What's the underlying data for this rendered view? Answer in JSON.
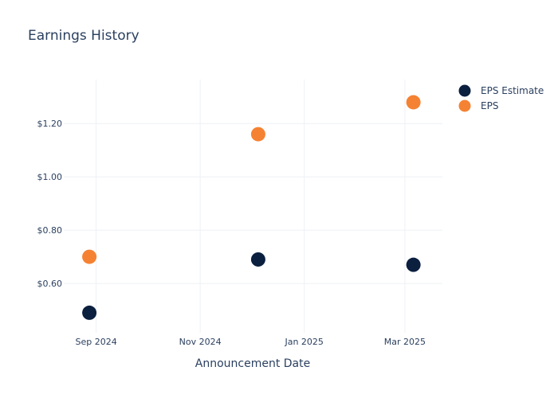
{
  "chart_data": {
    "type": "scatter",
    "title": "Earnings History",
    "xlabel": "Announcement Date",
    "ylabel": "",
    "x_ticks": [
      {
        "date": "2024-09-01",
        "label": "Sep 2024"
      },
      {
        "date": "2024-11-01",
        "label": "Nov 2024"
      },
      {
        "date": "2025-01-01",
        "label": "Jan 2025"
      },
      {
        "date": "2025-03-01",
        "label": "Mar 2025"
      }
    ],
    "y_ticks": [
      {
        "value": 0.6,
        "label": "$0.60"
      },
      {
        "value": 0.8,
        "label": "$0.80"
      },
      {
        "value": 1.0,
        "label": "$1.00"
      },
      {
        "value": 1.2,
        "label": "$1.20"
      }
    ],
    "xlim": [
      "2024-08-13",
      "2025-03-23"
    ],
    "ylim": [
      0.415,
      1.365
    ],
    "grid": true,
    "legend_position": "top-right",
    "series": [
      {
        "name": "EPS Estimate",
        "color": "#0b1f3f",
        "points": [
          {
            "x": "2024-08-28",
            "y": 0.49
          },
          {
            "x": "2024-12-05",
            "y": 0.69
          },
          {
            "x": "2025-03-06",
            "y": 0.67
          }
        ]
      },
      {
        "name": "EPS",
        "color": "#f58233",
        "points": [
          {
            "x": "2024-08-28",
            "y": 0.7
          },
          {
            "x": "2024-12-05",
            "y": 1.16
          },
          {
            "x": "2025-03-06",
            "y": 1.28
          }
        ]
      }
    ]
  }
}
